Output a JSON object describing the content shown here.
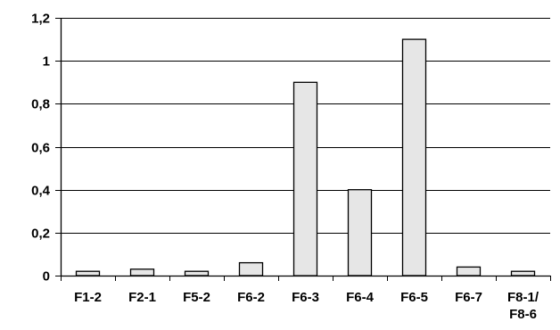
{
  "chart_data": {
    "type": "bar",
    "categories": [
      "F1-2",
      "F2-1",
      "F5-2",
      "F6-2",
      "F6-3",
      "F6-4",
      "F6-5",
      "F6-7",
      "F8-1/\nF8-6"
    ],
    "values": [
      0.02,
      0.03,
      0.02,
      0.06,
      0.9,
      0.4,
      1.1,
      0.04,
      0.02
    ],
    "ylim": [
      0,
      1.2
    ],
    "yticks": [
      0,
      0.2,
      0.4,
      0.6,
      0.8,
      1,
      1.2
    ],
    "ytick_labels": [
      "0",
      "0,2",
      "0,4",
      "0,6",
      "0,8",
      "1",
      "1,2"
    ],
    "grid": true,
    "legend": "none",
    "bar_color": "#e6e6e6",
    "bar_stroke": "#000000",
    "grid_color": "#000000"
  }
}
